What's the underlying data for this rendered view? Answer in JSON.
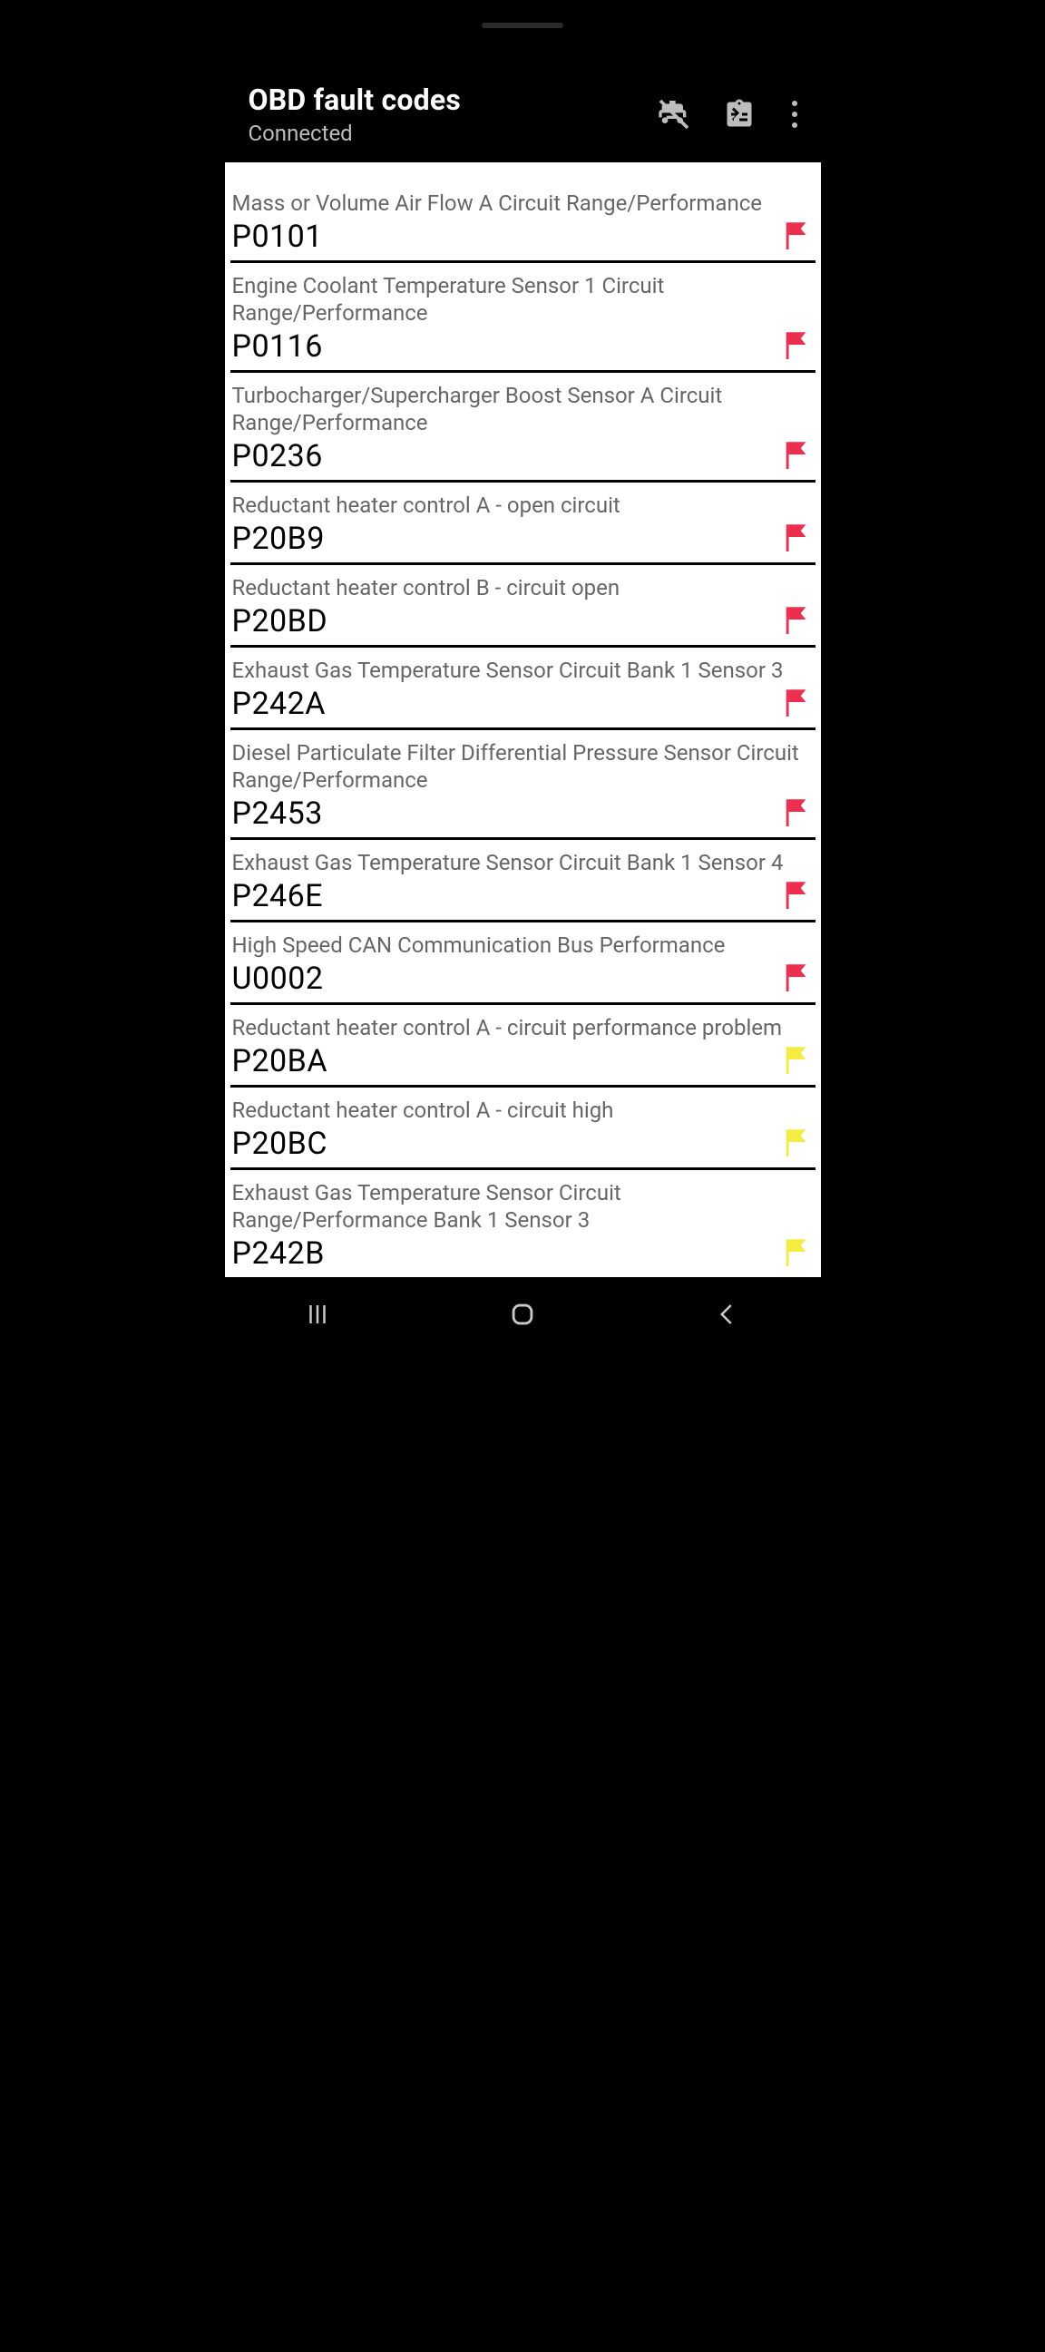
{
  "header": {
    "title": "OBD fault codes",
    "subtitle": "Connected"
  },
  "colors": {
    "flag_red": "#ed2e4f",
    "flag_yellow": "#f5ec42",
    "bg_black": "#000000",
    "bg_white": "#ffffff",
    "text_grey": "#666666",
    "icon_grey": "#bdbdbd",
    "divider": "#000000"
  },
  "faults": [
    {
      "description": "Mass or Volume Air Flow A Circuit Range/Performance",
      "code": "P0101",
      "flag": "red"
    },
    {
      "description": "Engine Coolant Temperature Sensor 1 Circuit Range/Performance",
      "code": "P0116",
      "flag": "red"
    },
    {
      "description": "Turbocharger/Supercharger Boost Sensor A Circuit Range/Performance",
      "code": "P0236",
      "flag": "red"
    },
    {
      "description": "Reductant heater control A - open circuit",
      "code": "P20B9",
      "flag": "red"
    },
    {
      "description": "Reductant heater control B - circuit open",
      "code": "P20BD",
      "flag": "red"
    },
    {
      "description": "Exhaust Gas Temperature Sensor Circuit Bank 1 Sensor 3",
      "code": "P242A",
      "flag": "red"
    },
    {
      "description": "Diesel Particulate Filter Differential Pressure Sensor Circuit Range/Performance",
      "code": "P2453",
      "flag": "red"
    },
    {
      "description": "Exhaust Gas Temperature Sensor Circuit Bank 1 Sensor 4",
      "code": "P246E",
      "flag": "red"
    },
    {
      "description": "High Speed CAN Communication Bus Performance",
      "code": "U0002",
      "flag": "red"
    },
    {
      "description": "Reductant heater control A - circuit performance problem",
      "code": "P20BA",
      "flag": "yellow"
    },
    {
      "description": "Reductant heater control A - circuit high",
      "code": "P20BC",
      "flag": "yellow"
    },
    {
      "description": "Exhaust Gas Temperature Sensor Circuit Range/Performance Bank 1 Sensor 3",
      "code": "P242B",
      "flag": "yellow"
    }
  ]
}
